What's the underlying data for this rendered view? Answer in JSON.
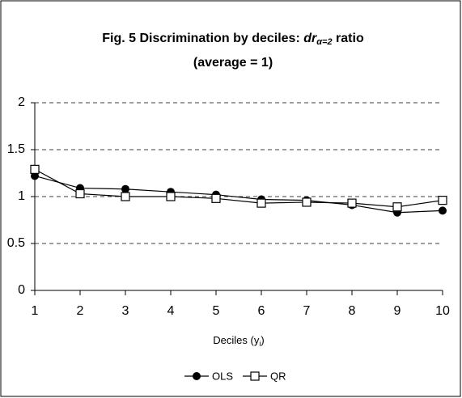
{
  "chart_data": {
    "type": "line",
    "title": [
      "Fig. 5 Discrimination by deciles: ",
      "dr",
      "α=2",
      " ratio"
    ],
    "subtitle": "(average = 1)",
    "x_label": [
      "Deciles (y",
      "i",
      ")"
    ],
    "x": [
      1,
      2,
      3,
      4,
      5,
      6,
      7,
      8,
      9,
      10
    ],
    "xlim": [
      1,
      10
    ],
    "xticks": [
      1,
      2,
      3,
      4,
      5,
      6,
      7,
      8,
      9,
      10
    ],
    "ylim": [
      0,
      2
    ],
    "yticks": [
      0,
      0.5,
      1,
      1.5,
      2
    ],
    "grid": true,
    "legend": "bottom",
    "series": [
      {
        "name": "OLS",
        "color": "#000000",
        "marker": "circle",
        "values": [
          1.22,
          1.09,
          1.08,
          1.05,
          1.02,
          0.97,
          0.96,
          0.91,
          0.83,
          0.85
        ]
      },
      {
        "name": "QR",
        "color": "#000000",
        "marker": "square",
        "values": [
          1.29,
          1.03,
          1.0,
          1.0,
          0.98,
          0.93,
          0.94,
          0.93,
          0.89,
          0.96
        ]
      }
    ]
  }
}
